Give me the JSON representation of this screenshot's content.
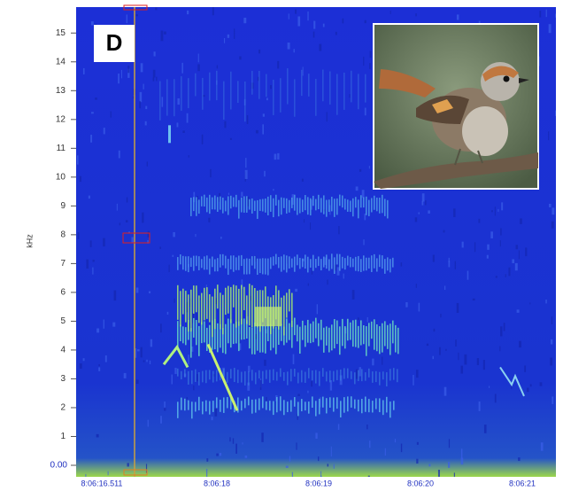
{
  "chart_data": {
    "type": "spectrogram",
    "panel_label": "D",
    "y_label": "kHz",
    "ylim": [
      -0.4,
      15.9
    ],
    "yticks": [
      {
        "value": 0,
        "label": "0.00"
      },
      1,
      2,
      3,
      4,
      5,
      6,
      7,
      8,
      9,
      10,
      11,
      12,
      13,
      14,
      15
    ],
    "x_tick_labels": [
      "8:06:16.511",
      "8:06:18",
      "8:06:19",
      "8:06:20",
      "8:06:21"
    ]
  }
}
